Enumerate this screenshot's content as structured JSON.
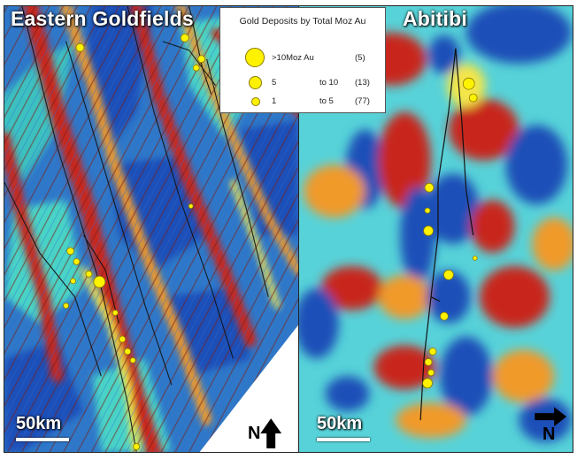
{
  "panels": {
    "left": {
      "title": "Eastern Goldfields",
      "scale_label": "50km",
      "north_label": "N"
    },
    "right": {
      "title": "Abitibi",
      "scale_label": "50km",
      "north_label": "N"
    }
  },
  "legend": {
    "title": "Gold Deposits by Total Moz Au",
    "items": [
      {
        "range_from": ">10Moz Au",
        "range_to": "",
        "count": "(5)"
      },
      {
        "range_from": "5",
        "range_to": "to 10",
        "count": "(13)"
      },
      {
        "range_from": "1",
        "range_to": "to 5",
        "count": "(77)"
      }
    ]
  },
  "colors": {
    "deposit": "#fff200",
    "high": "#c8281e",
    "mid_high": "#f09a2a",
    "mid": "#f4e64a",
    "mid_low": "#49d3c6",
    "low": "#1a4fb8"
  },
  "icons": {
    "north_arrow_left": "arrow-up-icon",
    "north_arrow_right": "arrow-right-icon"
  }
}
